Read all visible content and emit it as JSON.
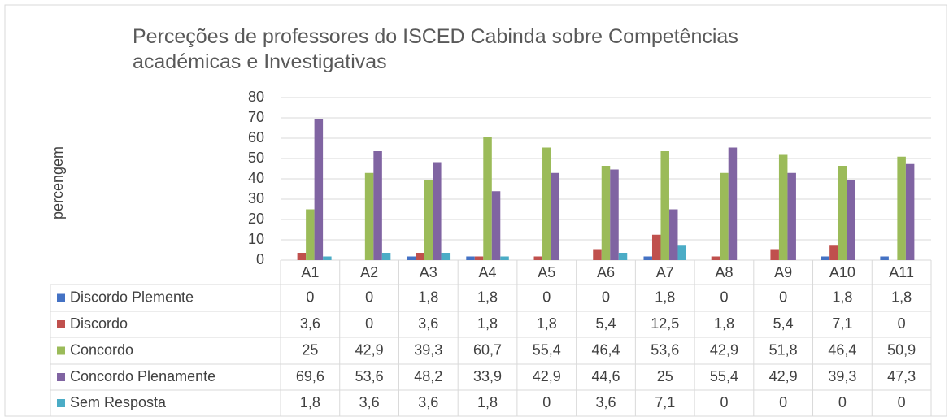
{
  "chart_data": {
    "type": "bar",
    "title": "Perceções de professores do ISCED Cabinda sobre Competências académicas e Investigativas",
    "y_label": "percengem",
    "categories": [
      "A1",
      "A2",
      "A3",
      "A4",
      "A5",
      "A6",
      "A7",
      "A8",
      "A9",
      "A10",
      "A11"
    ],
    "series": [
      {
        "name": "Discordo Plemente",
        "color": "#4472c4",
        "values": [
          0,
          0,
          1.8,
          1.8,
          0,
          0,
          1.8,
          0,
          0,
          1.8,
          1.8
        ],
        "value_labels": [
          "0",
          "0",
          "1,8",
          "1,8",
          "0",
          "0",
          "1,8",
          "0",
          "0",
          "1,8",
          "1,8"
        ]
      },
      {
        "name": "Discordo",
        "color": "#c0504d",
        "values": [
          3.6,
          0,
          3.6,
          1.8,
          1.8,
          5.4,
          12.5,
          1.8,
          5.4,
          7.1,
          0
        ],
        "value_labels": [
          "3,6",
          "0",
          "3,6",
          "1,8",
          "1,8",
          "5,4",
          "12,5",
          "1,8",
          "5,4",
          "7,1",
          "0"
        ]
      },
      {
        "name": "Concordo",
        "color": "#9bbb59",
        "values": [
          25,
          42.9,
          39.3,
          60.7,
          55.4,
          46.4,
          53.6,
          42.9,
          51.8,
          46.4,
          50.9
        ],
        "value_labels": [
          "25",
          "42,9",
          "39,3",
          "60,7",
          "55,4",
          "46,4",
          "53,6",
          "42,9",
          "51,8",
          "46,4",
          "50,9"
        ]
      },
      {
        "name": "Concordo Plenamente",
        "color": "#8064a2",
        "values": [
          69.6,
          53.6,
          48.2,
          33.9,
          42.9,
          44.6,
          25,
          55.4,
          42.9,
          39.3,
          47.3
        ],
        "value_labels": [
          "69,6",
          "53,6",
          "48,2",
          "33,9",
          "42,9",
          "44,6",
          "25",
          "55,4",
          "42,9",
          "39,3",
          "47,3"
        ]
      },
      {
        "name": "Sem Resposta",
        "color": "#4bacc6",
        "values": [
          1.8,
          3.6,
          3.6,
          1.8,
          0,
          3.6,
          7.1,
          0,
          0,
          0,
          0
        ],
        "value_labels": [
          "1,8",
          "3,6",
          "3,6",
          "1,8",
          "0",
          "3,6",
          "7,1",
          "0",
          "0",
          "0",
          "0"
        ]
      }
    ],
    "ylim": [
      0,
      80
    ],
    "yticks": [
      0,
      10,
      20,
      30,
      40,
      50,
      60,
      70,
      80
    ],
    "grid": true
  }
}
